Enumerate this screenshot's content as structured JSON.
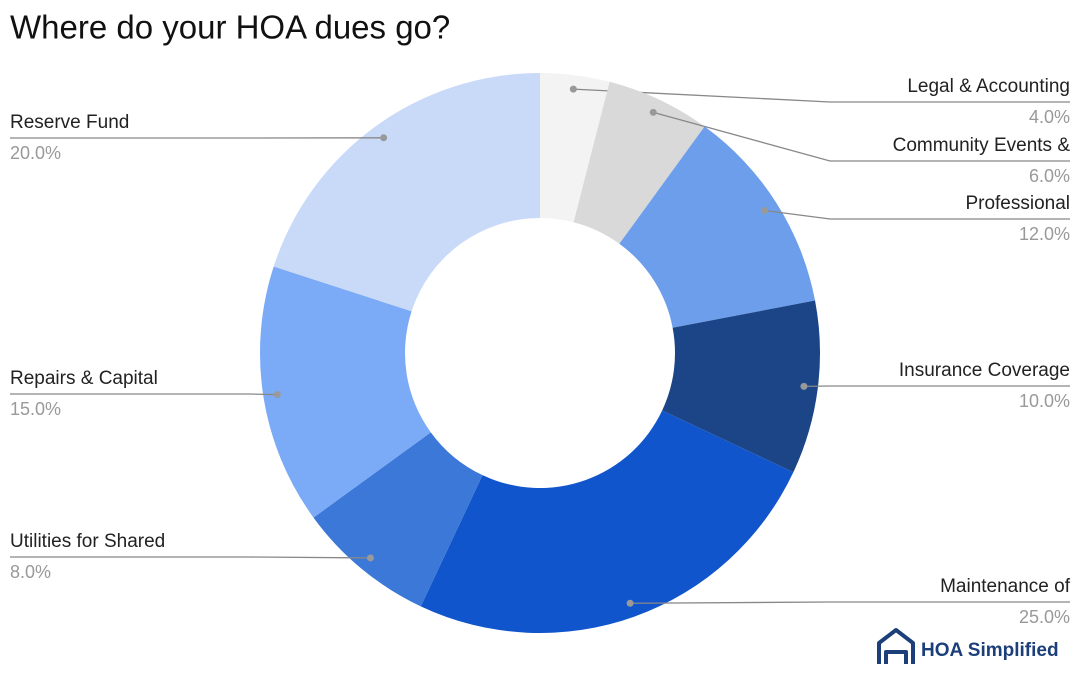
{
  "chart_data": {
    "type": "donut",
    "title": "Where do your HOA dues go?",
    "categories": [
      "Legal & Accounting",
      "Community Events &",
      "Professional",
      "Insurance Coverage",
      "Maintenance of",
      "Utilities for Shared",
      "Repairs & Capital",
      "Reserve Fund"
    ],
    "values": [
      4,
      6,
      12,
      10,
      25,
      8,
      15,
      20
    ],
    "value_labels": [
      "4.0%",
      "6.0%",
      "12.0%",
      "10.0%",
      "25.0%",
      "8.0%",
      "15.0%",
      "20.0%"
    ],
    "colors": [
      "#f3f3f3",
      "#d9d9d9",
      "#6d9eeb",
      "#1c4587",
      "#1155cc",
      "#3c78d8",
      "#7baaf7",
      "#c9daf8"
    ]
  },
  "logo": {
    "text": "HOA Simplified"
  }
}
